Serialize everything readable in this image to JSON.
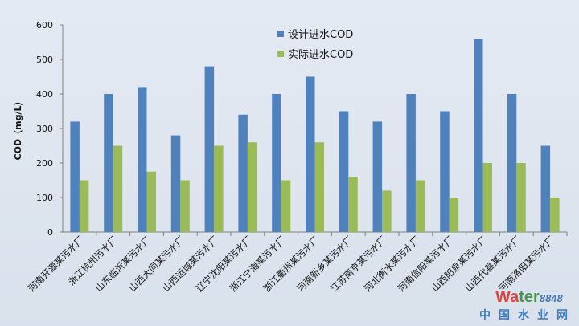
{
  "chart_data": {
    "type": "bar",
    "title": "",
    "xlabel": "",
    "ylabel": "COD（mg/L）",
    "ylim": [
      0,
      600
    ],
    "yticks": [
      0,
      100,
      200,
      300,
      400,
      500,
      600
    ],
    "grid": false,
    "legend_position": "top-center",
    "categories": [
      "河南开源某污水厂",
      "浙江杭州污水厂",
      "山东临沂某污水厂",
      "山西大同某污水厂",
      "山西运城某污水厂",
      "辽宁沈阳某污水厂",
      "浙江宁海某污水厂",
      "浙江衢州某污水厂",
      "河南新乡某污水厂",
      "江苏南京某污水厂",
      "河北衡水某污水厂",
      "河南信阳某污水厂",
      "山西阳泉某污水厂",
      "山西代县某污水厂",
      "河南洛阳某污水厂"
    ],
    "series": [
      {
        "name": "设计进水COD",
        "color": "#4f81bd",
        "values": [
          320,
          400,
          420,
          280,
          480,
          340,
          400,
          450,
          350,
          320,
          400,
          350,
          560,
          400,
          250
        ]
      },
      {
        "name": "实际进水COD",
        "color": "#9bbb59",
        "values": [
          150,
          250,
          175,
          150,
          250,
          260,
          150,
          260,
          160,
          120,
          150,
          100,
          200,
          200,
          100
        ]
      }
    ]
  },
  "watermark": {
    "text": "Water8848.com 中国水业网"
  }
}
